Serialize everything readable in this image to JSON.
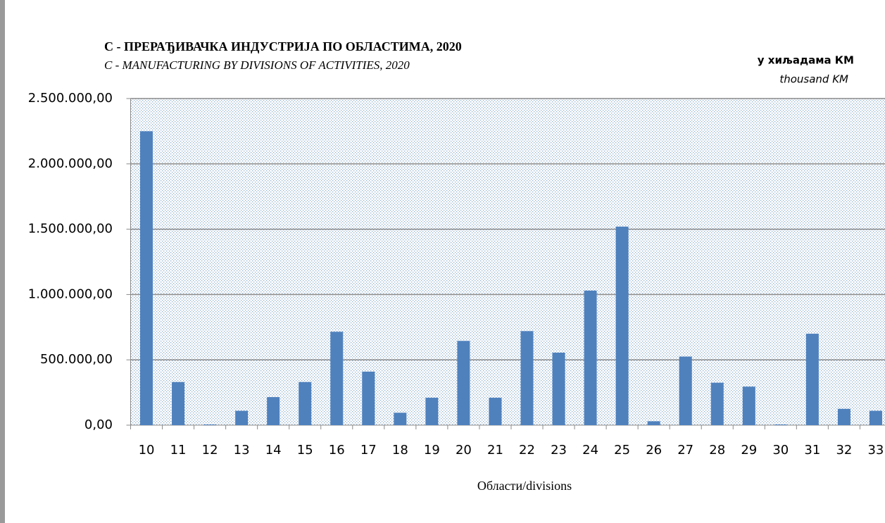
{
  "chart_data": {
    "type": "bar",
    "title": "C -  ПРЕРАЂИВАЧКА ИНДУСТРИЈА ПО ОБЛАСТИМА, 2020",
    "subtitle": "C -  MANUFACTURING  BY  DIVISIONS OF ACTIVITIES, 2020",
    "unit_label": "у хиљадама КМ",
    "unit_label_en": "thousand KM",
    "x_label": "Области/divisions",
    "categories": [
      "10",
      "11",
      "12",
      "13",
      "14",
      "15",
      "16",
      "17",
      "18",
      "19",
      "20",
      "21",
      "22",
      "23",
      "24",
      "25",
      "26",
      "27",
      "28",
      "29",
      "30",
      "31",
      "32",
      "33"
    ],
    "values": [
      2250000,
      330000,
      5000,
      110000,
      215000,
      330000,
      715000,
      410000,
      95000,
      210000,
      645000,
      210000,
      720000,
      555000,
      1030000,
      1520000,
      30000,
      525000,
      325000,
      295000,
      5000,
      700000,
      125000,
      110000
    ],
    "color": "#4f81bd",
    "ylim": [
      0,
      2500000
    ],
    "yticks": [
      {
        "value": 0,
        "label": "0,00"
      },
      {
        "value": 500000,
        "label": "500.000,00"
      },
      {
        "value": 1000000,
        "label": "1.000.000,00"
      },
      {
        "value": 1500000,
        "label": "1.500.000,00"
      },
      {
        "value": 2000000,
        "label": "2.000.000,00"
      },
      {
        "value": 2500000,
        "label": "2.500.000,00"
      }
    ],
    "grid": true
  }
}
